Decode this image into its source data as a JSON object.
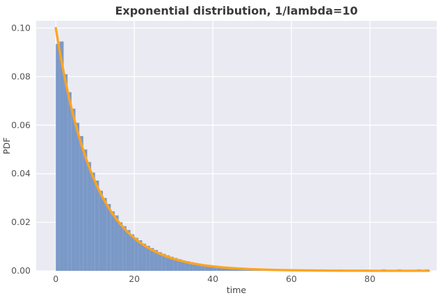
{
  "chart_data": {
    "type": "bar",
    "subtype": "histogram-with-pdf-curve",
    "title": "Exponential distribution, 1/lambda=10",
    "xlabel": "time",
    "ylabel": "PDF",
    "xlim": [
      -5,
      97
    ],
    "ylim": [
      0,
      0.103
    ],
    "grid": true,
    "legend": "none",
    "xticks": [
      {
        "v": 0,
        "label": "0"
      },
      {
        "v": 20,
        "label": "20"
      },
      {
        "v": 40,
        "label": "40"
      },
      {
        "v": 60,
        "label": "60"
      },
      {
        "v": 80,
        "label": "80"
      }
    ],
    "yticks": [
      {
        "v": 0.0,
        "label": "0.00"
      },
      {
        "v": 0.02,
        "label": "0.02"
      },
      {
        "v": 0.04,
        "label": "0.04"
      },
      {
        "v": 0.06,
        "label": "0.06"
      },
      {
        "v": 0.08,
        "label": "0.08"
      },
      {
        "v": 0.1,
        "label": "0.10"
      }
    ],
    "histogram": {
      "bin_start": 0,
      "bin_width": 1,
      "densities": [
        0.0935,
        0.0945,
        0.081,
        0.0736,
        0.0668,
        0.061,
        0.0555,
        0.05,
        0.0448,
        0.0405,
        0.0372,
        0.033,
        0.03,
        0.0275,
        0.0245,
        0.0228,
        0.02,
        0.0184,
        0.0168,
        0.015,
        0.0136,
        0.0126,
        0.0112,
        0.0103,
        0.0094,
        0.0086,
        0.0077,
        0.007,
        0.0064,
        0.0058,
        0.0053,
        0.0048,
        0.0043,
        0.004,
        0.0036,
        0.0032,
        0.003,
        0.0027,
        0.0024,
        0.0022,
        0.002,
        0.0018,
        0.0017,
        0.0015,
        0.0014,
        0.0012,
        0.0011,
        0.001,
        0.0009,
        0.0008,
        0.0008,
        0.0007,
        0.0006,
        0.0006,
        0.0005,
        0.0005,
        0.0004,
        0.0004,
        0.0003,
        0.0003,
        0.0003,
        0.0002,
        0.0002,
        0.0002,
        0.0002,
        0.0002,
        0.0001,
        0.0002,
        0.0001,
        0.0001,
        0.0001,
        0.0,
        0.0001,
        0.0,
        0.0001,
        0.0,
        0.0,
        0.0001,
        0.0,
        0.0,
        0.0001,
        0.0,
        0.0,
        0.0006,
        0.0,
        0.0,
        0.0,
        0.0006,
        0.0,
        0.0,
        0.0,
        0.0,
        0.0006,
        0.0,
        0.0006
      ]
    },
    "curve": {
      "name": "exponential pdf",
      "formula": "pdf(x) = (1/scale) * exp(-x/scale)",
      "scale": 10,
      "x_start": 0,
      "x_end": 95
    },
    "colors": {
      "axes_background": "#eaeaf2",
      "grid": "#ffffff",
      "histogram_fill": "#7b99c7",
      "curve_stroke": "#ffa421",
      "tick_label": "#555555",
      "axis_label": "#444444",
      "title": "#3a3a3a"
    }
  }
}
